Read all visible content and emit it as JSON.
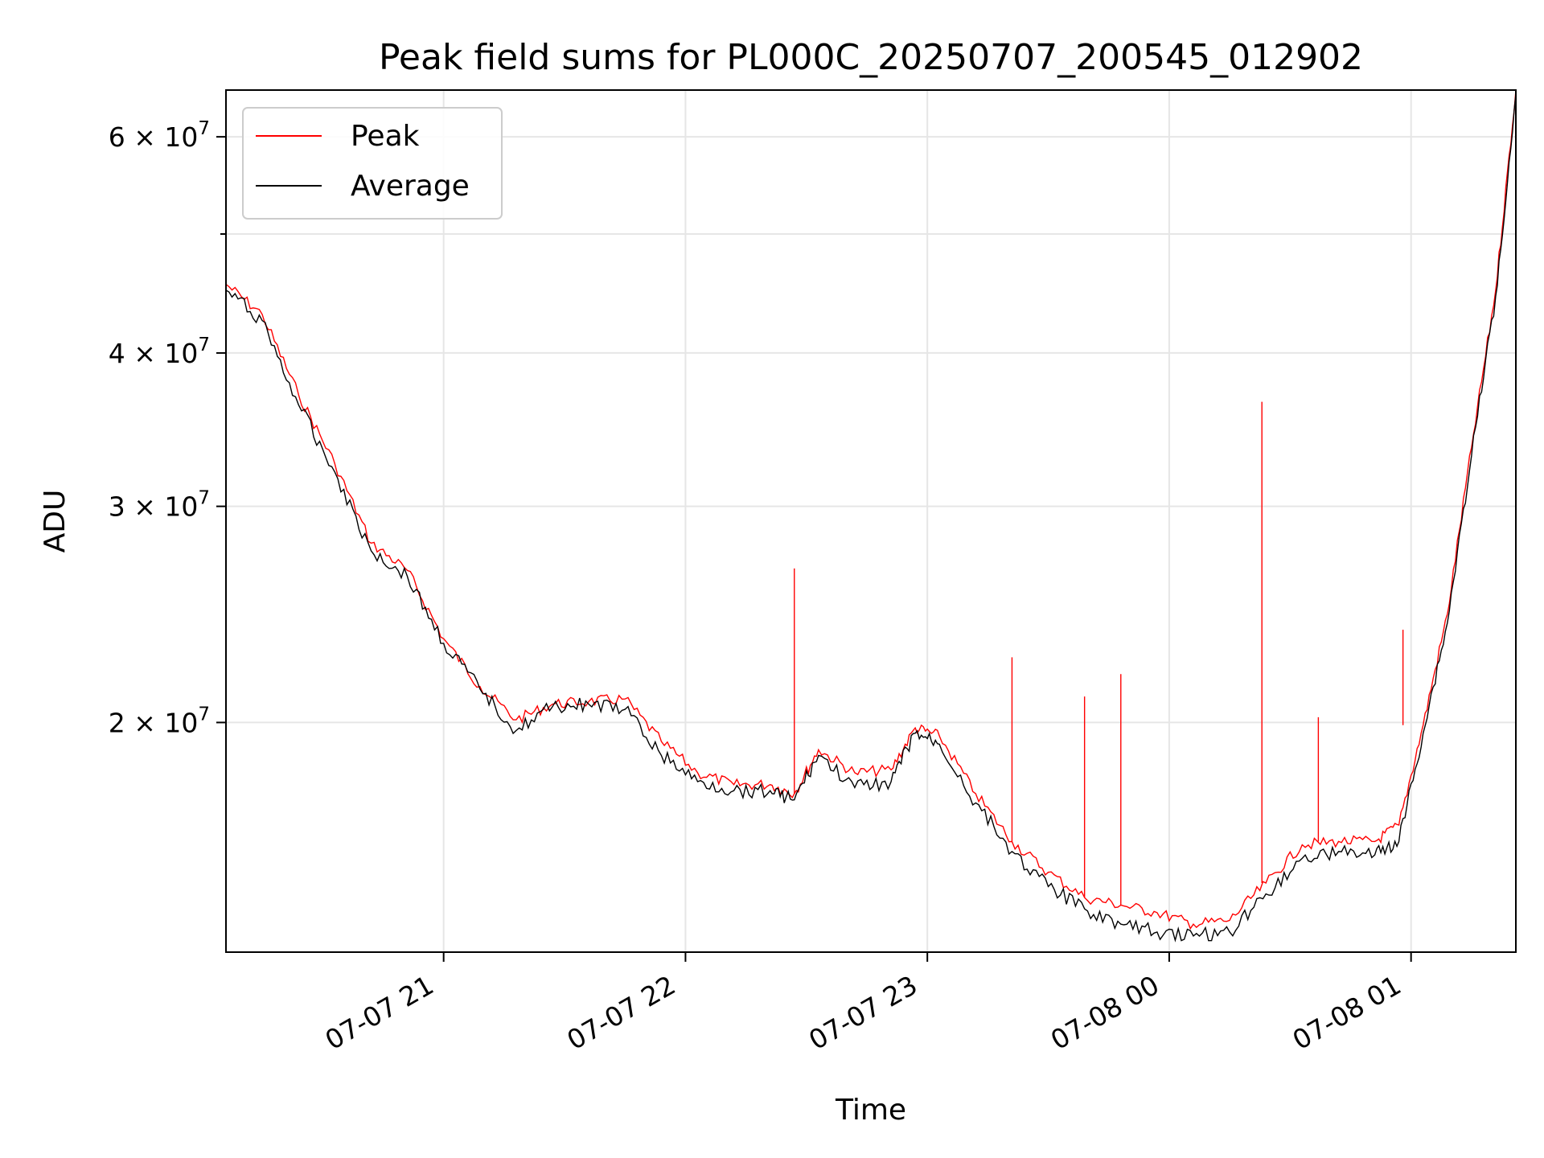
{
  "chart_data": {
    "type": "line",
    "title": "Peak field sums for PL000C_20250707_200545_012902",
    "xlabel": "Time",
    "ylabel": "ADU",
    "y_scale": "log",
    "grid": true,
    "legend_position": "top-left",
    "xlim": [
      "2025-07-07 20:06",
      "2025-07-08 01:26"
    ],
    "ylim": [
      13000000,
      65500000
    ],
    "x_ticks": [
      {
        "value": "2025-07-07 21:00",
        "label": "07-07 21"
      },
      {
        "value": "2025-07-07 22:00",
        "label": "07-07 22"
      },
      {
        "value": "2025-07-07 23:00",
        "label": "07-07 23"
      },
      {
        "value": "2025-07-08 00:00",
        "label": "07-08 00"
      },
      {
        "value": "2025-07-08 01:00",
        "label": "07-08 01"
      }
    ],
    "y_ticks": [
      {
        "value": 20000000,
        "label": "2 × 10⁷",
        "mantissa": "2",
        "exponent": "7"
      },
      {
        "value": 30000000,
        "label": "3 × 10⁷",
        "mantissa": "3",
        "exponent": "7"
      },
      {
        "value": 40000000,
        "label": "4 × 10⁷",
        "mantissa": "4",
        "exponent": "7"
      },
      {
        "value": 60000000,
        "label": "6 × 10⁷",
        "mantissa": "6",
        "exponent": "7"
      }
    ],
    "y_minor_ticks": [
      50000000
    ],
    "x": [
      "2025-07-07 20:06",
      "2025-07-07 20:15",
      "2025-07-07 20:24",
      "2025-07-07 20:33",
      "2025-07-07 20:42",
      "2025-07-07 20:51",
      "2025-07-07 21:00",
      "2025-07-07 21:09",
      "2025-07-07 21:18",
      "2025-07-07 21:27",
      "2025-07-07 21:36",
      "2025-07-07 21:45",
      "2025-07-07 21:54",
      "2025-07-07 22:03",
      "2025-07-07 22:12",
      "2025-07-07 22:21",
      "2025-07-07 22:27",
      "2025-07-07 22:33",
      "2025-07-07 22:42",
      "2025-07-07 22:51",
      "2025-07-07 22:57",
      "2025-07-07 23:03",
      "2025-07-07 23:12",
      "2025-07-07 23:21",
      "2025-07-07 23:30",
      "2025-07-07 23:39",
      "2025-07-07 23:48",
      "2025-07-07 23:57",
      "2025-07-08 00:06",
      "2025-07-08 00:15",
      "2025-07-08 00:24",
      "2025-07-08 00:33",
      "2025-07-08 00:42",
      "2025-07-08 00:51",
      "2025-07-08 00:57",
      "2025-07-08 01:03",
      "2025-07-08 01:09",
      "2025-07-08 01:15",
      "2025-07-08 01:21",
      "2025-07-08 01:26"
    ],
    "series": [
      {
        "name": "Peak",
        "color": "#ff0000",
        "values": [
          45500000,
          43000000,
          37000000,
          32500000,
          28000000,
          26600000,
          23400000,
          21400000,
          20100000,
          20700000,
          20800000,
          20900000,
          19300000,
          18200000,
          17800000,
          17800000,
          17500000,
          19000000,
          18200000,
          18300000,
          19800000,
          19500000,
          17500000,
          16000000,
          15100000,
          14400000,
          14200000,
          14000000,
          13700000,
          13800000,
          14800000,
          15900000,
          16000000,
          16000000,
          16500000,
          19900000,
          24500000,
          33500000,
          45000000,
          65500000
        ],
        "spikes": [
          {
            "x": "2025-07-07 22:27",
            "y": 26700000
          },
          {
            "x": "2025-07-07 23:21",
            "y": 22600000
          },
          {
            "x": "2025-07-07 23:39",
            "y": 21000000
          },
          {
            "x": "2025-07-07 23:48",
            "y": 21900000
          },
          {
            "x": "2025-07-08 00:23",
            "y": 36500000
          },
          {
            "x": "2025-07-08 00:37",
            "y": 20200000
          },
          {
            "x": "2025-07-08 00:58",
            "y": 23800000
          }
        ]
      },
      {
        "name": "Average",
        "color": "#000000",
        "values": [
          45000000,
          42500000,
          36300000,
          32000000,
          27600000,
          26300000,
          23200000,
          21300000,
          19700000,
          20600000,
          20700000,
          20500000,
          18800000,
          17900000,
          17600000,
          17600000,
          17300000,
          18800000,
          17700000,
          17900000,
          19600000,
          19200000,
          17200000,
          15700000,
          14700000,
          14100000,
          13700000,
          13500000,
          13400000,
          13500000,
          14500000,
          15500000,
          15700000,
          15600000,
          16000000,
          19600000,
          24100000,
          33000000,
          44500000,
          65000000
        ]
      }
    ]
  }
}
